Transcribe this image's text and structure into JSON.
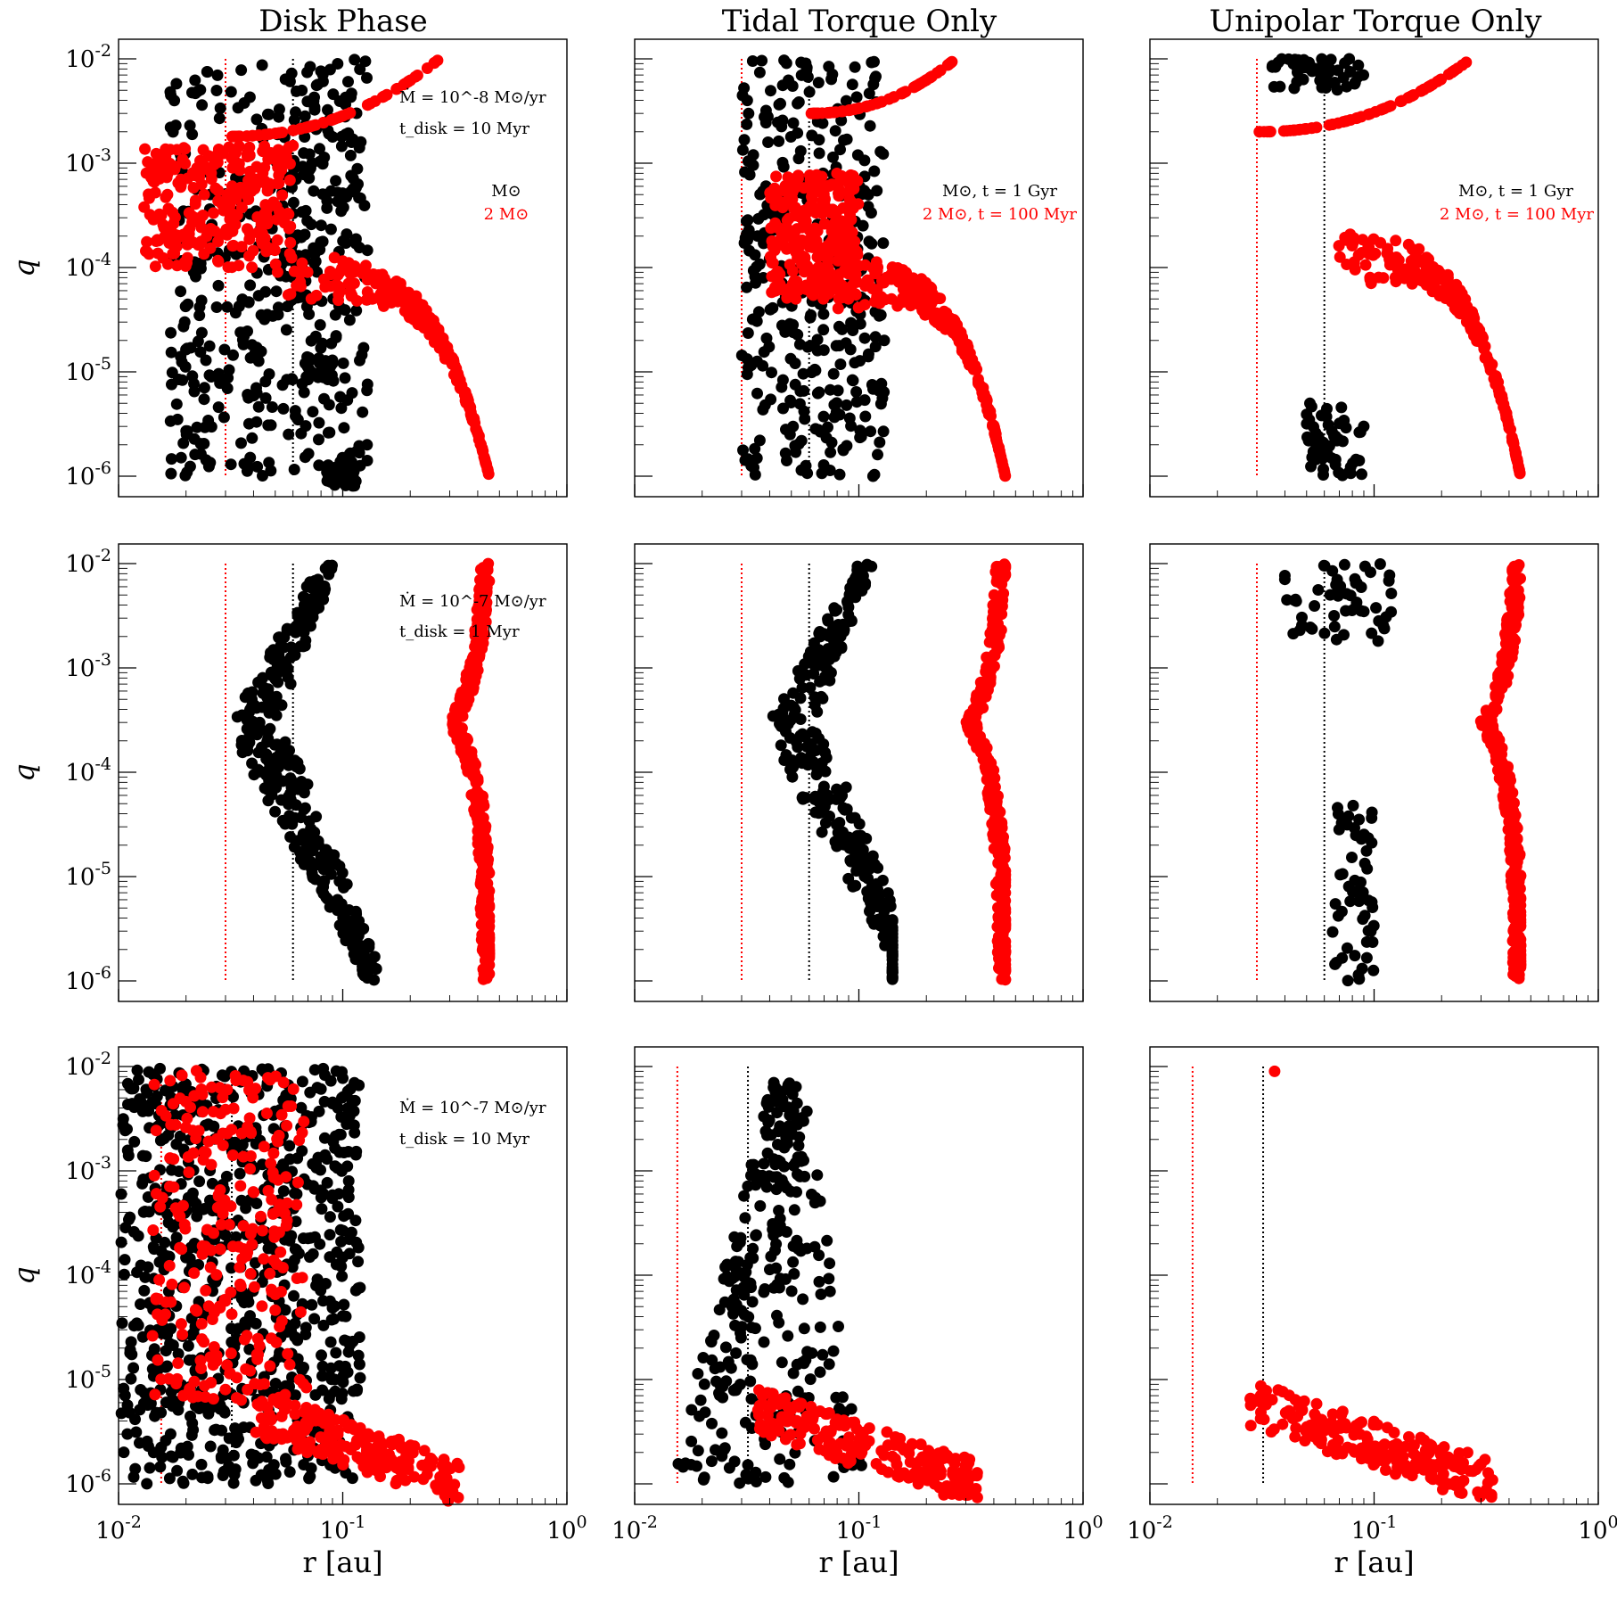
{
  "colors": {
    "solar": "#000000",
    "two_solar": "#ff0000"
  },
  "column_titles": [
    "Disk Phase",
    "Tidal Torque Only",
    "Unipolar Torque Only"
  ],
  "axis_labels": {
    "x": "r [au]",
    "y": "q"
  },
  "x_tick_labels": [
    "10^-2",
    "10^-1",
    "10^0"
  ],
  "y_tick_labels": [
    "10^-6",
    "10^-5",
    "10^-4",
    "10^-3",
    "10^-2"
  ],
  "annotations": {
    "row1_col1": [
      "Ṁ = 10^-8 M⊙/yr",
      "t_disk = 10 Myr",
      "M⊙",
      "2 M⊙"
    ],
    "row1_col2": [
      "M⊙, t = 1 Gyr",
      "2 M⊙, t = 100 Myr"
    ],
    "row1_col3": [
      "M⊙, t = 1 Gyr",
      "2 M⊙, t = 100 Myr"
    ],
    "row2_col1": [
      "Ṁ = 10^-7 M⊙/yr",
      "t_disk = 1 Myr"
    ],
    "row3_col1": [
      "Ṁ = 10^-7 M⊙/yr",
      "t_disk = 10 Myr"
    ]
  },
  "chart_data": [
    {
      "type": "scatter",
      "row": 1,
      "col": 1,
      "title": "Disk Phase",
      "xlabel": "",
      "ylabel": "q",
      "x_scale": "log",
      "y_scale": "log",
      "xlim": [
        0.01,
        1
      ],
      "ylim": [
        1e-06,
        0.01
      ],
      "ref_lines": {
        "black": 0.06,
        "red": 0.03
      },
      "black": {
        "x_range": [
          0.017,
          0.13
        ],
        "q_range": [
          1e-06,
          0.01
        ],
        "distribution": "broad",
        "count": 450,
        "tail": [
          [
            0.1,
            1e-06
          ],
          [
            0.08,
            1e-05
          ],
          [
            0.06,
            0.0001
          ]
        ]
      },
      "red": {
        "branches": [
          {
            "kind": "arc",
            "x": [
              0.03,
              0.27
            ],
            "q": [
              0.0018,
              0.01
            ]
          },
          {
            "kind": "cloud",
            "x_range": [
              0.013,
              0.06
            ],
            "q_range": [
              0.0001,
              0.0015
            ]
          },
          {
            "kind": "decline",
            "x": [
              0.05,
              0.45
            ],
            "q": [
              8e-05,
              1e-06
            ]
          }
        ]
      }
    },
    {
      "type": "scatter",
      "row": 1,
      "col": 2,
      "title": "Tidal Torque Only",
      "xlabel": "",
      "ylabel": "",
      "x_scale": "log",
      "y_scale": "log",
      "xlim": [
        0.01,
        1
      ],
      "ylim": [
        1e-06,
        0.01
      ],
      "ref_lines": {
        "black": 0.06,
        "red": 0.03
      },
      "black": {
        "x_range": [
          0.03,
          0.13
        ],
        "q_range": [
          1e-06,
          0.01
        ],
        "distribution": "column",
        "count": 360
      },
      "red": {
        "branches": [
          {
            "kind": "arc",
            "x": [
              0.06,
              0.27
            ],
            "q": [
              0.003,
              0.01
            ]
          },
          {
            "kind": "cloud",
            "x_range": [
              0.04,
              0.1
            ],
            "q_range": [
              5e-05,
              0.0008
            ]
          },
          {
            "kind": "decline",
            "x": [
              0.07,
              0.45
            ],
            "q": [
              7e-05,
              1e-06
            ]
          }
        ]
      }
    },
    {
      "type": "scatter",
      "row": 1,
      "col": 3,
      "title": "Unipolar Torque Only",
      "xlabel": "",
      "ylabel": "",
      "x_scale": "log",
      "y_scale": "log",
      "xlim": [
        0.01,
        1
      ],
      "ylim": [
        1e-06,
        0.01
      ],
      "ref_lines": {
        "black": 0.06,
        "red": 0.03
      },
      "black": {
        "clusters": [
          {
            "x_range": [
              0.035,
              0.09
            ],
            "q_range": [
              0.005,
              0.01
            ]
          },
          {
            "x_range": [
              0.05,
              0.09
            ],
            "q_range": [
              1e-06,
              5e-06
            ]
          }
        ]
      },
      "red": {
        "branches": [
          {
            "kind": "arc",
            "x": [
              0.03,
              0.27
            ],
            "q": [
              0.002,
              0.01
            ]
          },
          {
            "kind": "decline",
            "x": [
              0.06,
              0.45
            ],
            "q": [
              0.00012,
              1e-06
            ]
          }
        ]
      }
    },
    {
      "type": "scatter",
      "row": 2,
      "col": 1,
      "title": "",
      "xlabel": "",
      "ylabel": "q",
      "x_scale": "log",
      "y_scale": "log",
      "xlim": [
        0.01,
        1
      ],
      "ylim": [
        1e-06,
        0.01
      ],
      "ref_lines": {
        "black": 0.06,
        "red": 0.03
      },
      "black": {
        "x_range": [
          0.025,
          0.16
        ],
        "q_range": [
          1e-06,
          0.01
        ],
        "shape": "funnel",
        "peak": [
          0.04,
          0.0003
        ]
      },
      "red": {
        "shape": "spine",
        "x_min": 0.25,
        "x_max": 0.45,
        "q_knee": 0.0003
      }
    },
    {
      "type": "scatter",
      "row": 2,
      "col": 2,
      "title": "",
      "xlabel": "",
      "ylabel": "",
      "x_scale": "log",
      "y_scale": "log",
      "xlim": [
        0.01,
        1
      ],
      "ylim": [
        1e-06,
        0.01
      ],
      "ref_lines": {
        "black": 0.06,
        "red": 0.03
      },
      "black": {
        "x_range": [
          0.035,
          0.16
        ],
        "q_range": [
          1e-06,
          0.01
        ],
        "shape": "funnel",
        "peak": [
          0.05,
          0.0003
        ]
      },
      "red": {
        "shape": "spine",
        "x_min": 0.25,
        "x_max": 0.45,
        "q_knee": 0.0003
      }
    },
    {
      "type": "scatter",
      "row": 2,
      "col": 3,
      "title": "",
      "xlabel": "",
      "ylabel": "",
      "x_scale": "log",
      "y_scale": "log",
      "xlim": [
        0.01,
        1
      ],
      "ylim": [
        1e-06,
        0.01
      ],
      "ref_lines": {
        "black": 0.06,
        "red": 0.03
      },
      "black": {
        "clusters": [
          {
            "x_range": [
              0.04,
              0.12
            ],
            "q_range": [
              0.0018,
              0.01
            ]
          },
          {
            "x_range": [
              0.065,
              0.1
            ],
            "q_range": [
              1e-06,
              5e-05
            ]
          }
        ]
      },
      "red": {
        "shape": "spine",
        "x_min": 0.25,
        "x_max": 0.45,
        "q_knee": 0.0003
      }
    },
    {
      "type": "scatter",
      "row": 3,
      "col": 1,
      "title": "",
      "xlabel": "r [au]",
      "ylabel": "q",
      "x_scale": "log",
      "y_scale": "log",
      "xlim": [
        0.01,
        1
      ],
      "ylim": [
        1e-06,
        0.01
      ],
      "ref_lines": {
        "black": 0.032,
        "red": 0.0155
      },
      "black": {
        "x_range": [
          0.01,
          0.12
        ],
        "q_range": [
          1e-06,
          0.01
        ],
        "distribution": "broad",
        "count": 800
      },
      "red": {
        "branches": [
          {
            "kind": "cloud",
            "x_range": [
              0.014,
              0.07
            ],
            "q_range": [
              6e-06,
              0.01
            ]
          },
          {
            "kind": "tail",
            "x": [
              0.04,
              0.34
            ],
            "q": [
              5e-06,
              1e-06
            ]
          }
        ]
      }
    },
    {
      "type": "scatter",
      "row": 3,
      "col": 2,
      "title": "",
      "xlabel": "r [au]",
      "ylabel": "",
      "x_scale": "log",
      "y_scale": "log",
      "xlim": [
        0.01,
        1
      ],
      "ylim": [
        1e-06,
        0.01
      ],
      "ref_lines": {
        "black": 0.032,
        "red": 0.0155
      },
      "black": {
        "x_range": [
          0.02,
          0.11
        ],
        "q_range": [
          1e-06,
          0.007
        ],
        "shape": "wedge"
      },
      "red": {
        "branches": [
          {
            "kind": "tail",
            "x": [
              0.035,
              0.34
            ],
            "q": [
              5e-06,
              1e-06
            ]
          }
        ]
      }
    },
    {
      "type": "scatter",
      "row": 3,
      "col": 3,
      "title": "",
      "xlabel": "r [au]",
      "ylabel": "",
      "x_scale": "log",
      "y_scale": "log",
      "xlim": [
        0.01,
        1
      ],
      "ylim": [
        1e-06,
        0.01
      ],
      "ref_lines": {
        "black": 0.032,
        "red": 0.0155
      },
      "black": {
        "clusters": []
      },
      "red": {
        "branches": [
          {
            "kind": "point",
            "x": 0.036,
            "q": 0.009
          },
          {
            "kind": "tail",
            "x": [
              0.028,
              0.34
            ],
            "q": [
              6e-06,
              1e-06
            ]
          }
        ]
      }
    }
  ]
}
